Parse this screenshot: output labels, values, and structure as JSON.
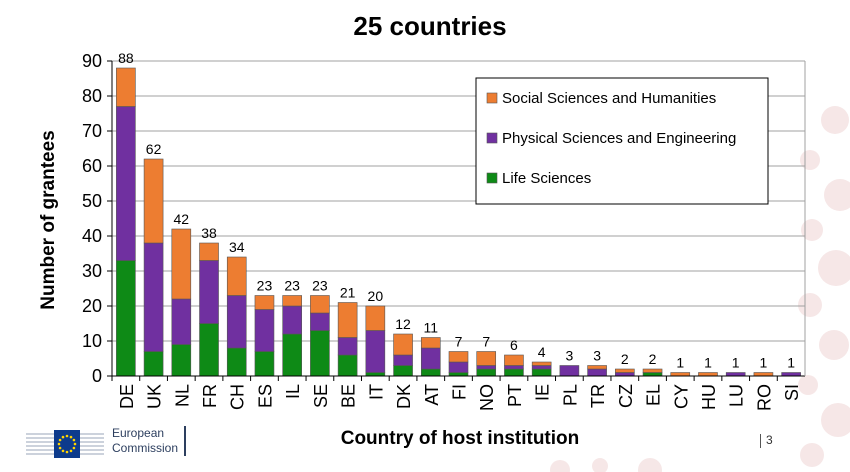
{
  "footer": {
    "organisation_line1": "European",
    "organisation_line2": "Commission",
    "page_number": "3"
  },
  "colors": {
    "social": "#ED7D31",
    "physical": "#7030A0",
    "life": "#0E8A16",
    "decor": "#F6E7E7"
  },
  "chart_data": {
    "type": "bar",
    "stacked": true,
    "title": "25 countries",
    "xlabel": "Country of host institution",
    "ylabel": "Number of grantees",
    "ylim": [
      0,
      90
    ],
    "yticks": [
      0,
      10,
      20,
      30,
      40,
      50,
      60,
      70,
      80,
      90
    ],
    "grid": true,
    "legend_position": "top-right",
    "categories": [
      "DE",
      "UK",
      "NL",
      "FR",
      "CH",
      "ES",
      "IL",
      "SE",
      "BE",
      "IT",
      "DK",
      "AT",
      "FI",
      "NO",
      "PT",
      "IE",
      "PL",
      "TR",
      "CZ",
      "EL",
      "CY",
      "HU",
      "LU",
      "RO",
      "SI"
    ],
    "totals": [
      88,
      62,
      42,
      38,
      34,
      23,
      23,
      23,
      21,
      20,
      12,
      11,
      7,
      7,
      6,
      4,
      3,
      3,
      2,
      2,
      1,
      1,
      1,
      1,
      1
    ],
    "series": [
      {
        "name": "Life Sciences",
        "color": "#0E8A16",
        "values": [
          33,
          7,
          9,
          15,
          8,
          7,
          12,
          13,
          6,
          1,
          3,
          2,
          1,
          2,
          2,
          2,
          0,
          0,
          0,
          1,
          0,
          0,
          0,
          0,
          0
        ]
      },
      {
        "name": "Physical Sciences and Engineering",
        "color": "#7030A0",
        "values": [
          44,
          31,
          13,
          18,
          15,
          12,
          8,
          5,
          5,
          12,
          3,
          6,
          3,
          1,
          1,
          1,
          3,
          2,
          1,
          0,
          0,
          0,
          1,
          0,
          1
        ]
      },
      {
        "name": "Social Sciences and Humanities",
        "color": "#ED7D31",
        "values": [
          11,
          24,
          20,
          5,
          11,
          4,
          3,
          5,
          10,
          7,
          6,
          3,
          3,
          4,
          3,
          1,
          0,
          1,
          1,
          1,
          1,
          1,
          0,
          1,
          0
        ]
      }
    ],
    "legend_order": [
      "Social Sciences and Humanities",
      "Physical Sciences and Engineering",
      "Life Sciences"
    ]
  }
}
